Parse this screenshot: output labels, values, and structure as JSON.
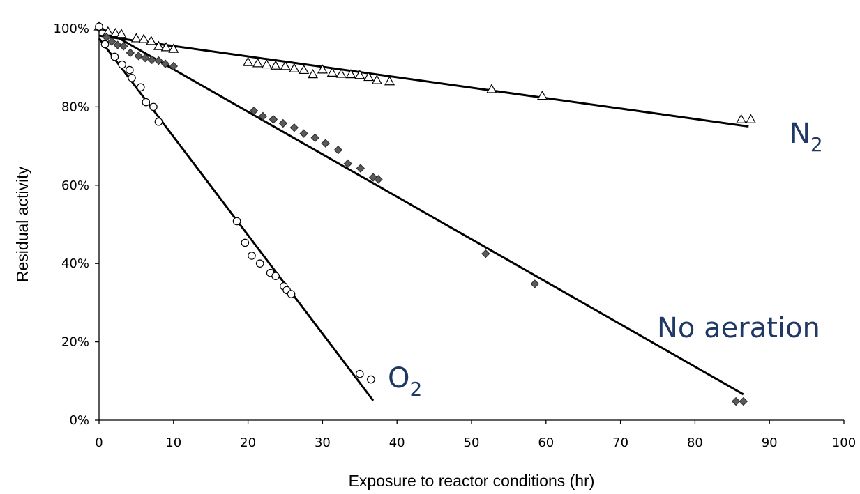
{
  "chart_data": {
    "type": "scatter",
    "title": "",
    "xlabel": "Exposure to reactor conditions (hr)",
    "ylabel": "Residual activity",
    "xlim": [
      0,
      100
    ],
    "ylim": [
      0,
      100
    ],
    "x_ticks": [
      0,
      10,
      20,
      30,
      40,
      50,
      60,
      70,
      80,
      90,
      100
    ],
    "y_ticks": [
      0,
      20,
      40,
      60,
      80,
      100
    ],
    "y_tick_format": "percent",
    "grid": false,
    "legend": "none",
    "annotation_color": "#1F3864",
    "series": [
      {
        "name": "N",
        "subscript": "2",
        "marker": "triangle-open",
        "points": [
          [
            0,
            100.5
          ],
          [
            1.2,
            99.2
          ],
          [
            2.2,
            98.8
          ],
          [
            3,
            98.6
          ],
          [
            5,
            97.5
          ],
          [
            6,
            97.3
          ],
          [
            7,
            96.8
          ],
          [
            8,
            95.5
          ],
          [
            9,
            95.2
          ],
          [
            10,
            94.8
          ],
          [
            20,
            91.4
          ],
          [
            21.3,
            91.1
          ],
          [
            22.5,
            90.8
          ],
          [
            23.7,
            90.5
          ],
          [
            25,
            90.4
          ],
          [
            26.2,
            89.8
          ],
          [
            27.5,
            89.4
          ],
          [
            28.7,
            88.3
          ],
          [
            30,
            89.5
          ],
          [
            31.3,
            88.7
          ],
          [
            32.5,
            88.4
          ],
          [
            33.8,
            88.3
          ],
          [
            35,
            88.1
          ],
          [
            36.2,
            87.6
          ],
          [
            37.3,
            86.8
          ],
          [
            39,
            86.5
          ],
          [
            52.7,
            84.5
          ],
          [
            59.5,
            82.8
          ],
          [
            86.2,
            76.8
          ],
          [
            87.5,
            76.8
          ]
        ],
        "fit": [
          [
            0,
            98.2
          ],
          [
            87.2,
            75
          ]
        ]
      },
      {
        "name": "No aeration",
        "marker": "diamond-filled",
        "points": [
          [
            0,
            100
          ],
          [
            1,
            97.8
          ],
          [
            1.7,
            96.7
          ],
          [
            2.5,
            95.8
          ],
          [
            3.3,
            95.5
          ],
          [
            4.2,
            93.8
          ],
          [
            5.3,
            93
          ],
          [
            6.2,
            92.5
          ],
          [
            7.1,
            92
          ],
          [
            8,
            91.8
          ],
          [
            8.9,
            91
          ],
          [
            10,
            90.4
          ],
          [
            20.8,
            79
          ],
          [
            22,
            77.6
          ],
          [
            23.4,
            76.8
          ],
          [
            24.7,
            75.8
          ],
          [
            26.2,
            74.7
          ],
          [
            27.5,
            73.2
          ],
          [
            29,
            72.1
          ],
          [
            30.4,
            70.7
          ],
          [
            32.1,
            69
          ],
          [
            33.4,
            65.5
          ],
          [
            35.1,
            64.3
          ],
          [
            36.8,
            62
          ],
          [
            37.5,
            61.5
          ],
          [
            51.9,
            42.5
          ],
          [
            58.5,
            34.8
          ],
          [
            85.5,
            4.8
          ],
          [
            86.5,
            4.8
          ]
        ],
        "fit": [
          [
            0.4,
            100
          ],
          [
            86.5,
            6.6
          ]
        ]
      },
      {
        "name": "O",
        "subscript": "2",
        "marker": "circle-open",
        "points": [
          [
            0,
            100.5
          ],
          [
            0.8,
            96
          ],
          [
            2.1,
            92.8
          ],
          [
            3.1,
            90.8
          ],
          [
            4.1,
            89.4
          ],
          [
            4.4,
            87.4
          ],
          [
            5.6,
            85
          ],
          [
            6.3,
            81.2
          ],
          [
            7.3,
            80
          ],
          [
            8,
            76.2
          ],
          [
            18.5,
            50.8
          ],
          [
            19.6,
            45.3
          ],
          [
            20.5,
            42
          ],
          [
            21.6,
            40
          ],
          [
            23,
            37.6
          ],
          [
            23.7,
            36.8
          ],
          [
            24.8,
            34.2
          ],
          [
            25.2,
            33.2
          ],
          [
            25.8,
            32.2
          ],
          [
            35,
            11.8
          ],
          [
            36.5,
            10.4
          ]
        ],
        "fit": [
          [
            0,
            97.5
          ],
          [
            36.8,
            5
          ]
        ]
      }
    ]
  }
}
